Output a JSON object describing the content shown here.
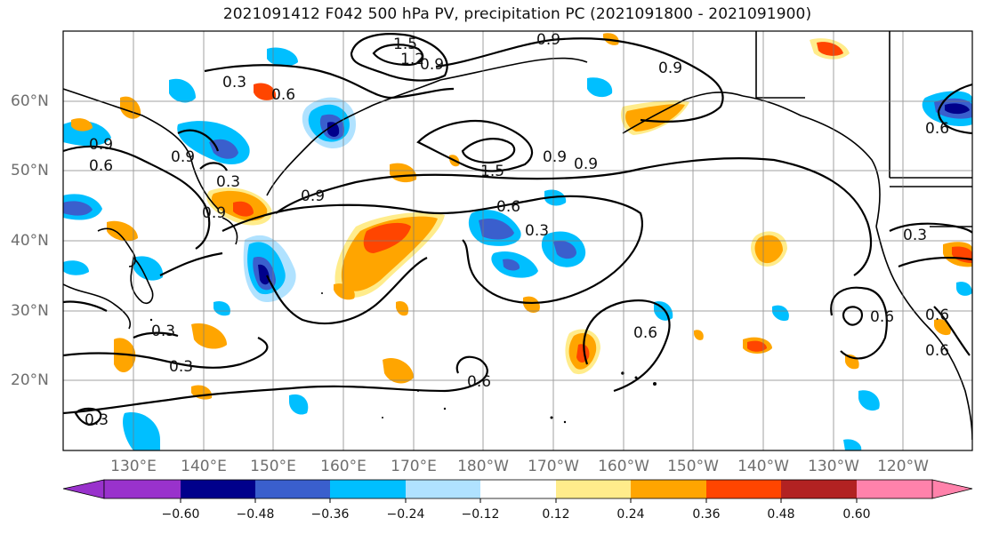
{
  "title": "2021091412 F042 500 hPa PV, precipitation PC (2021091800 - 2021091900)",
  "lat_labels": [
    "60°N",
    "50°N",
    "40°N",
    "30°N",
    "20°N"
  ],
  "lon_labels": [
    "130°E",
    "140°E",
    "150°E",
    "160°E",
    "170°E",
    "180°W",
    "170°W",
    "160°W",
    "150°W",
    "140°W",
    "130°W",
    "120°W"
  ],
  "colorbar": {
    "colors": [
      "#9932CC",
      "#00008B",
      "#3A5FCD",
      "#00BFFF",
      "#B0E2FF",
      "#FFFFFF",
      "#FFFFFF",
      "#FFEC8B",
      "#FFA500",
      "#FF4500",
      "#B22222",
      "#FF82AB"
    ],
    "tick_labels": [
      "−0.60",
      "−0.48",
      "−0.36",
      "−0.24",
      "−0.12",
      "0.12",
      "0.24",
      "0.36",
      "0.48",
      "0.60"
    ]
  },
  "contour_labels": [
    "0.3",
    "0.6",
    "0.9",
    "1.2",
    "1.5"
  ],
  "contour_color": "#000000"
}
